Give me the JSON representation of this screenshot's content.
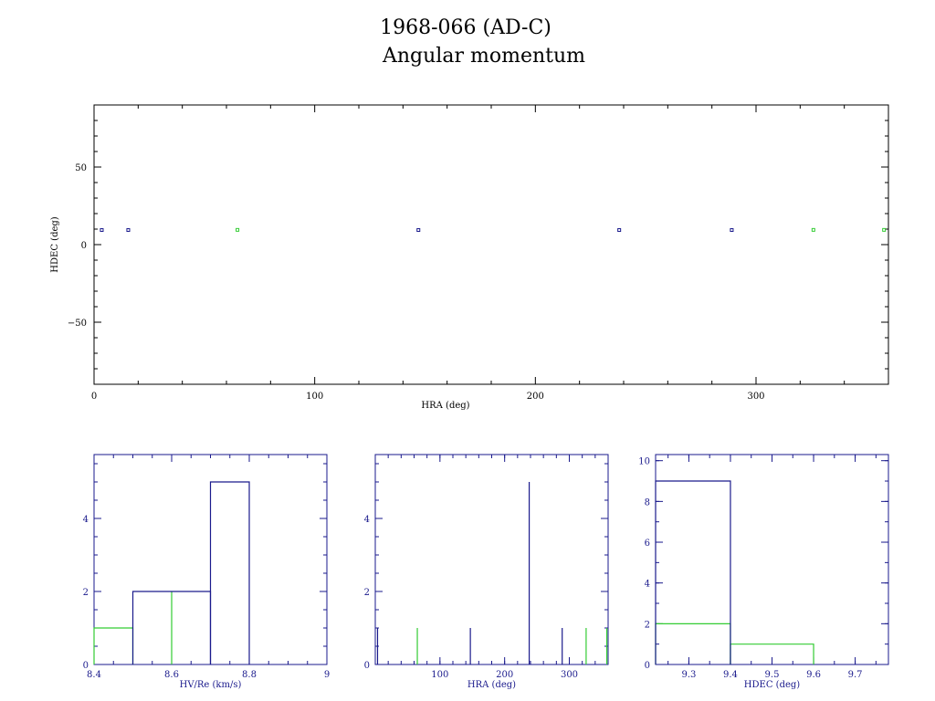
{
  "page": {
    "title_line1": "1968-066 (AD-C)",
    "title_line2": "Angular momentum"
  },
  "colors": {
    "series_blue": "#1a1a8c",
    "series_green": "#33cc33",
    "frame_black": "#000000",
    "frame_blue": "#1a1a8c"
  },
  "chart_data": [
    {
      "type": "scatter",
      "xlabel": "HRA (deg)",
      "ylabel": "HDEC (deg)",
      "xlim": [
        0,
        360
      ],
      "ylim": [
        -90,
        90
      ],
      "x_ticks": [
        0,
        100,
        200,
        300
      ],
      "y_ticks": [
        50,
        0,
        -50
      ],
      "series": [
        {
          "color": "blue",
          "points": [
            [
              3.5,
              9.4
            ],
            [
              15.5,
              9.4
            ],
            [
              147,
              9.4
            ],
            [
              238,
              9.4
            ],
            [
              289,
              9.4
            ]
          ]
        },
        {
          "color": "green",
          "points": [
            [
              65,
              9.5
            ],
            [
              326,
              9.5
            ],
            [
              358,
              9.5
            ]
          ]
        }
      ]
    },
    {
      "type": "histogram",
      "xlabel": "HV/Re (km/s)",
      "xlim": [
        8.4,
        9.0
      ],
      "ylim": [
        0,
        5.75
      ],
      "x_ticks": [
        "8.4",
        "8.6",
        "8.8",
        "9"
      ],
      "y_ticks": [
        "0",
        "2",
        "4"
      ],
      "series": [
        {
          "color": "blue",
          "bins": [
            [
              8.5,
              8.7,
              2
            ],
            [
              8.7,
              8.8,
              5
            ]
          ]
        },
        {
          "color": "green",
          "bins": [
            [
              8.4,
              8.5,
              1
            ],
            [
              8.6,
              8.6,
              2
            ]
          ]
        }
      ]
    },
    {
      "type": "histogram",
      "xlabel": "HRA (deg)",
      "xlim": [
        0,
        360
      ],
      "ylim": [
        0,
        5.75
      ],
      "x_ticks": [
        "100",
        "200",
        "300"
      ],
      "y_ticks": [
        "0",
        "2",
        "4"
      ],
      "series": [
        {
          "color": "blue",
          "bins": [
            [
              3.5,
              3.5,
              1
            ],
            [
              147,
              147,
              1
            ],
            [
              238,
              238,
              5
            ],
            [
              289,
              289,
              1
            ]
          ]
        },
        {
          "color": "green",
          "bins": [
            [
              65,
              65,
              1
            ],
            [
              326,
              326,
              1
            ],
            [
              358,
              358,
              1
            ]
          ]
        }
      ]
    },
    {
      "type": "histogram",
      "xlabel": "HDEC (deg)",
      "xlim": [
        9.22,
        9.78
      ],
      "ylim": [
        0,
        10.3
      ],
      "x_ticks": [
        "9.3",
        "9.4",
        "9.5",
        "9.6",
        "9.7"
      ],
      "y_ticks": [
        "0",
        "2",
        "4",
        "6",
        "8",
        "10"
      ],
      "series": [
        {
          "color": "blue",
          "bins": [
            [
              9.22,
              9.4,
              9
            ]
          ]
        },
        {
          "color": "green",
          "bins": [
            [
              9.22,
              9.4,
              2
            ],
            [
              9.4,
              9.6,
              1
            ]
          ]
        }
      ]
    }
  ]
}
